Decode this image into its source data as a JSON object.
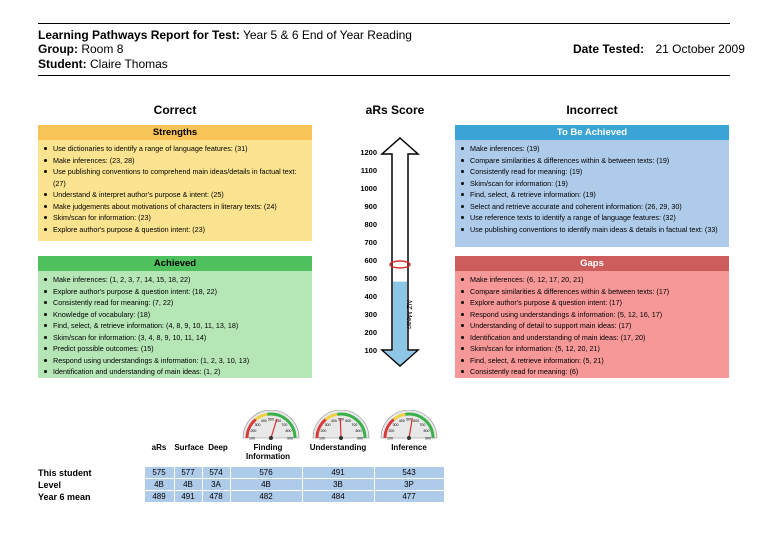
{
  "header": {
    "title_label": "Learning Pathways Report for Test:",
    "title_value": "Year 5 & 6 End of Year Reading",
    "group_label": "Group:",
    "group_value": "Room 8",
    "student_label": "Student:",
    "student_value": "Claire Thomas",
    "date_label": "Date Tested:",
    "date_value": "21 October 2009"
  },
  "columns": {
    "correct": "Correct",
    "score": "aRs Score",
    "incorrect": "Incorrect"
  },
  "strengths": {
    "title": "Strengths",
    "items": [
      "Use dictionaries to identify a range of language features: (31)",
      "Make inferences: (23, 28)",
      "Use publishing conventions to comprehend main ideas/details in factual text: (27)",
      "Understand & interpret author's purpose & intent: (25)",
      "Make judgements about motivations of characters in literary texts: (24)",
      "Skim/scan for information: (23)",
      "Explore author's purpose & question intent: (23)"
    ]
  },
  "achieved": {
    "title": "Achieved",
    "items": [
      "Make inferences: (1, 2, 3, 7, 14, 15, 18, 22)",
      "Explore author's purpose & question intent: (18, 22)",
      "Consistently read for meaning: (7, 22)",
      "Knowledge of vocabulary: (18)",
      "Find, select, & retrieve information: (4, 8, 9, 10, 11, 13, 18)",
      "Skim/scan for information: (3, 4, 8, 9, 10, 11, 14)",
      "Predict possible outcomes: (15)",
      "Respond using understandings & information: (1, 2, 3, 10, 13)",
      "Identification and understanding of main ideas: (1, 2)"
    ]
  },
  "to_be_achieved": {
    "title": "To Be Achieved",
    "items": [
      "Make inferences: (19)",
      "Compare similarities & differences within & between texts: (19)",
      "Consistently read for meaning: (19)",
      "Skim/scan for information: (19)",
      "Find, select, & retrieve information: (19)",
      "Select and retrieve accurate and coherent information: (26, 29, 30)",
      "Use reference texts to identify a range of language features: (32)",
      "Use publishing conventions to identify main ideas & details in factual text: (33)"
    ]
  },
  "gaps": {
    "title": "Gaps",
    "items": [
      "Make inferences: (6, 12, 17, 20, 21)",
      "Compare similarities & differences within & between texts: (17)",
      "Explore author's purpose & question intent: (17)",
      "Respond using understandings & information: (5, 12, 16, 17)",
      "Understanding of detail to support main ideas: (17)",
      "Identification and understanding of main ideas: (17, 20)",
      "Skim/scan for information: (5, 12, 20, 21)",
      "Find, select, & retrieve information: (5, 21)",
      "Consistently read for meaning: (6)"
    ]
  },
  "scale": {
    "ticks": [
      "1200",
      "1100",
      "1000",
      "900",
      "800",
      "700",
      "600",
      "500",
      "400",
      "300",
      "200",
      "100"
    ],
    "student_score": 575,
    "nz_mean": 480,
    "mean_label": "NZ Mean"
  },
  "gauges": [
    {
      "name": "finding",
      "value": 576,
      "ticks": [
        "100",
        "200",
        "300",
        "400",
        "500",
        "600",
        "700",
        "800",
        "900"
      ]
    },
    {
      "name": "understanding",
      "value": 491,
      "ticks": [
        "100",
        "200",
        "300",
        "400",
        "500",
        "600",
        "700",
        "800",
        "900"
      ]
    },
    {
      "name": "inference",
      "value": 543,
      "ticks": [
        "100",
        "200",
        "300",
        "400",
        "500",
        "600",
        "700",
        "800",
        "900"
      ]
    }
  ],
  "table": {
    "col_labels": [
      "aRs",
      "Surface",
      "Deep",
      "Finding\nInformation",
      "Understanding",
      "Inference"
    ],
    "rows": [
      {
        "label": "This student",
        "values": [
          "575",
          "577",
          "574",
          "576",
          "491",
          "543"
        ]
      },
      {
        "label": "Level",
        "values": [
          "4B",
          "4B",
          "3A",
          "4B",
          "3B",
          "3P"
        ]
      },
      {
        "label": "Year 6 mean",
        "values": [
          "489",
          "491",
          "478",
          "482",
          "484",
          "477"
        ]
      }
    ]
  }
}
